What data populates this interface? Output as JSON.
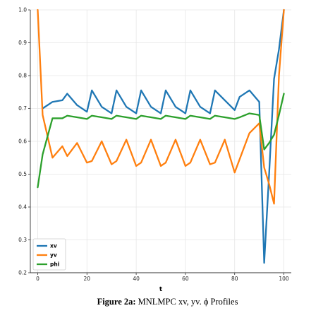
{
  "chart_data": {
    "type": "line",
    "xlabel": "t",
    "ylabel": "",
    "xlim": [
      -3,
      103
    ],
    "ylim": [
      0.2,
      1.0
    ],
    "x_ticks": [
      0,
      20,
      40,
      60,
      80,
      100
    ],
    "y_ticks": [
      0.2,
      0.3,
      0.4,
      0.5,
      0.6,
      0.7,
      0.8,
      0.9,
      1.0
    ],
    "grid": true,
    "legend_position": "bottom-left",
    "x": [
      0,
      2,
      6,
      10,
      12,
      16,
      20,
      22,
      26,
      30,
      32,
      36,
      40,
      42,
      46,
      50,
      52,
      56,
      60,
      62,
      66,
      70,
      72,
      76,
      80,
      82,
      86,
      90,
      92,
      94,
      96,
      98,
      100
    ],
    "series": [
      {
        "name": "xv",
        "color": "#1f77b4",
        "values": [
          null,
          0.7,
          0.72,
          0.725,
          0.745,
          0.71,
          0.69,
          0.755,
          0.705,
          0.685,
          0.755,
          0.705,
          0.685,
          0.755,
          0.705,
          0.685,
          0.755,
          0.705,
          0.685,
          0.755,
          0.705,
          0.685,
          0.755,
          0.725,
          0.695,
          0.735,
          0.755,
          0.72,
          0.23,
          0.5,
          0.79,
          0.88,
          1.0
        ]
      },
      {
        "name": "yv",
        "color": "#ff7f0e",
        "values": [
          1.0,
          0.68,
          0.55,
          0.585,
          0.555,
          0.595,
          0.535,
          0.54,
          0.6,
          0.53,
          0.54,
          0.605,
          0.525,
          0.535,
          0.605,
          0.525,
          0.535,
          0.605,
          0.525,
          0.535,
          0.605,
          0.53,
          0.535,
          0.605,
          0.505,
          0.545,
          0.625,
          0.655,
          0.52,
          0.47,
          0.41,
          0.8,
          1.0
        ]
      },
      {
        "name": "phi",
        "color": "#2ca02c",
        "values": [
          0.46,
          0.56,
          0.67,
          0.67,
          0.678,
          0.673,
          0.668,
          0.678,
          0.673,
          0.668,
          0.678,
          0.673,
          0.668,
          0.678,
          0.673,
          0.668,
          0.678,
          0.673,
          0.668,
          0.678,
          0.673,
          0.668,
          0.678,
          0.673,
          0.668,
          0.673,
          0.685,
          0.68,
          0.575,
          0.595,
          0.62,
          0.68,
          0.745
        ]
      }
    ]
  },
  "caption": {
    "label": "Figure 2a:",
    "text": "MNLMPC xv, yv. ϕ Profiles"
  }
}
